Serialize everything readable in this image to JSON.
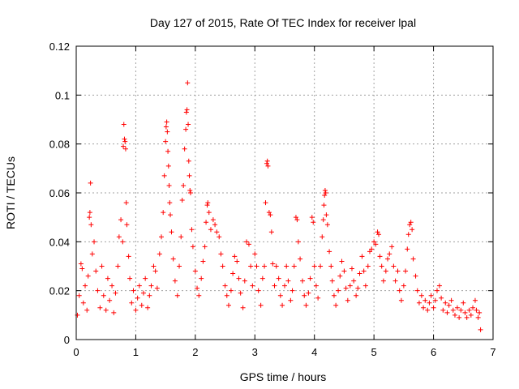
{
  "chart_data": {
    "type": "scatter",
    "title": "Day 127 of 2015, Rate Of TEC Index for receiver lpal",
    "xlabel": "GPS time / hours",
    "ylabel": "ROTI / TECUs",
    "xlim": [
      0,
      7
    ],
    "ylim": [
      0,
      0.12
    ],
    "x_ticks": [
      0,
      1,
      2,
      3,
      4,
      5,
      6,
      7
    ],
    "x_tick_labels": [
      "0",
      "1",
      "2",
      "3",
      "4",
      "5",
      "6",
      "7"
    ],
    "y_ticks": [
      0,
      0.02,
      0.04,
      0.06,
      0.08,
      0.1,
      0.12
    ],
    "y_tick_labels": [
      "0",
      "0.02",
      "0.04",
      "0.06",
      "0.08",
      "0.1",
      "0.12"
    ],
    "grid": true,
    "marker": "+",
    "color": "#ff0000",
    "series": [
      {
        "name": "ROTI",
        "points": [
          [
            0.02,
            0.01
          ],
          [
            0.05,
            0.018
          ],
          [
            0.08,
            0.031
          ],
          [
            0.1,
            0.029
          ],
          [
            0.12,
            0.015
          ],
          [
            0.15,
            0.022
          ],
          [
            0.18,
            0.012
          ],
          [
            0.2,
            0.026
          ],
          [
            0.22,
            0.05
          ],
          [
            0.23,
            0.052
          ],
          [
            0.24,
            0.064
          ],
          [
            0.25,
            0.047
          ],
          [
            0.27,
            0.035
          ],
          [
            0.3,
            0.04
          ],
          [
            0.33,
            0.028
          ],
          [
            0.36,
            0.02
          ],
          [
            0.4,
            0.013
          ],
          [
            0.43,
            0.03
          ],
          [
            0.46,
            0.018
          ],
          [
            0.5,
            0.012
          ],
          [
            0.53,
            0.025
          ],
          [
            0.56,
            0.016
          ],
          [
            0.6,
            0.022
          ],
          [
            0.63,
            0.011
          ],
          [
            0.66,
            0.019
          ],
          [
            0.7,
            0.03
          ],
          [
            0.72,
            0.042
          ],
          [
            0.75,
            0.049
          ],
          [
            0.78,
            0.04
          ],
          [
            0.79,
            0.079
          ],
          [
            0.8,
            0.088
          ],
          [
            0.81,
            0.082
          ],
          [
            0.82,
            0.081
          ],
          [
            0.83,
            0.078
          ],
          [
            0.84,
            0.056
          ],
          [
            0.85,
            0.047
          ],
          [
            0.88,
            0.034
          ],
          [
            0.9,
            0.025
          ],
          [
            0.93,
            0.015
          ],
          [
            0.96,
            0.02
          ],
          [
            1.0,
            0.012
          ],
          [
            1.03,
            0.017
          ],
          [
            1.06,
            0.022
          ],
          [
            1.1,
            0.014
          ],
          [
            1.13,
            0.019
          ],
          [
            1.16,
            0.025
          ],
          [
            1.2,
            0.013
          ],
          [
            1.23,
            0.018
          ],
          [
            1.26,
            0.022
          ],
          [
            1.3,
            0.03
          ],
          [
            1.33,
            0.028
          ],
          [
            1.36,
            0.021
          ],
          [
            1.4,
            0.035
          ],
          [
            1.43,
            0.042
          ],
          [
            1.46,
            0.052
          ],
          [
            1.48,
            0.067
          ],
          [
            1.5,
            0.081
          ],
          [
            1.51,
            0.087
          ],
          [
            1.52,
            0.089
          ],
          [
            1.53,
            0.085
          ],
          [
            1.54,
            0.077
          ],
          [
            1.55,
            0.071
          ],
          [
            1.56,
            0.063
          ],
          [
            1.57,
            0.056
          ],
          [
            1.58,
            0.051
          ],
          [
            1.6,
            0.044
          ],
          [
            1.63,
            0.033
          ],
          [
            1.66,
            0.024
          ],
          [
            1.7,
            0.018
          ],
          [
            1.73,
            0.03
          ],
          [
            1.76,
            0.042
          ],
          [
            1.78,
            0.057
          ],
          [
            1.8,
            0.063
          ],
          [
            1.82,
            0.078
          ],
          [
            1.84,
            0.086
          ],
          [
            1.85,
            0.093
          ],
          [
            1.86,
            0.094
          ],
          [
            1.87,
            0.105
          ],
          [
            1.88,
            0.088
          ],
          [
            1.89,
            0.073
          ],
          [
            1.9,
            0.067
          ],
          [
            1.91,
            0.061
          ],
          [
            1.92,
            0.06
          ],
          [
            1.94,
            0.045
          ],
          [
            1.96,
            0.038
          ],
          [
            2.0,
            0.028
          ],
          [
            2.03,
            0.021
          ],
          [
            2.06,
            0.018
          ],
          [
            2.1,
            0.025
          ],
          [
            2.13,
            0.032
          ],
          [
            2.16,
            0.038
          ],
          [
            2.18,
            0.048
          ],
          [
            2.2,
            0.055
          ],
          [
            2.21,
            0.056
          ],
          [
            2.23,
            0.052
          ],
          [
            2.26,
            0.045
          ],
          [
            2.3,
            0.049
          ],
          [
            2.33,
            0.047
          ],
          [
            2.36,
            0.044
          ],
          [
            2.4,
            0.042
          ],
          [
            2.43,
            0.035
          ],
          [
            2.46,
            0.03
          ],
          [
            2.5,
            0.022
          ],
          [
            2.53,
            0.018
          ],
          [
            2.56,
            0.014
          ],
          [
            2.6,
            0.02
          ],
          [
            2.63,
            0.027
          ],
          [
            2.66,
            0.034
          ],
          [
            2.7,
            0.032
          ],
          [
            2.73,
            0.025
          ],
          [
            2.76,
            0.019
          ],
          [
            2.8,
            0.013
          ],
          [
            2.83,
            0.024
          ],
          [
            2.86,
            0.04
          ],
          [
            2.9,
            0.039
          ],
          [
            2.93,
            0.03
          ],
          [
            2.96,
            0.022
          ],
          [
            3.0,
            0.035
          ],
          [
            3.03,
            0.03
          ],
          [
            3.06,
            0.02
          ],
          [
            3.1,
            0.014
          ],
          [
            3.13,
            0.025
          ],
          [
            3.16,
            0.03
          ],
          [
            3.18,
            0.056
          ],
          [
            3.2,
            0.072
          ],
          [
            3.21,
            0.073
          ],
          [
            3.22,
            0.071
          ],
          [
            3.24,
            0.052
          ],
          [
            3.26,
            0.051
          ],
          [
            3.28,
            0.044
          ],
          [
            3.3,
            0.031
          ],
          [
            3.33,
            0.022
          ],
          [
            3.36,
            0.03
          ],
          [
            3.4,
            0.025
          ],
          [
            3.43,
            0.018
          ],
          [
            3.46,
            0.014
          ],
          [
            3.5,
            0.022
          ],
          [
            3.53,
            0.03
          ],
          [
            3.56,
            0.024
          ],
          [
            3.6,
            0.016
          ],
          [
            3.63,
            0.02
          ],
          [
            3.66,
            0.03
          ],
          [
            3.69,
            0.05
          ],
          [
            3.71,
            0.049
          ],
          [
            3.73,
            0.04
          ],
          [
            3.76,
            0.033
          ],
          [
            3.8,
            0.024
          ],
          [
            3.83,
            0.018
          ],
          [
            3.86,
            0.014
          ],
          [
            3.9,
            0.019
          ],
          [
            3.93,
            0.025
          ],
          [
            3.96,
            0.05
          ],
          [
            3.98,
            0.048
          ],
          [
            4.0,
            0.03
          ],
          [
            4.03,
            0.022
          ],
          [
            4.06,
            0.017
          ],
          [
            4.1,
            0.03
          ],
          [
            4.13,
            0.042
          ],
          [
            4.15,
            0.049
          ],
          [
            4.16,
            0.055
          ],
          [
            4.17,
            0.059
          ],
          [
            4.18,
            0.061
          ],
          [
            4.19,
            0.06
          ],
          [
            4.2,
            0.051
          ],
          [
            4.22,
            0.047
          ],
          [
            4.25,
            0.036
          ],
          [
            4.28,
            0.03
          ],
          [
            4.3,
            0.024
          ],
          [
            4.33,
            0.018
          ],
          [
            4.36,
            0.014
          ],
          [
            4.4,
            0.02
          ],
          [
            4.43,
            0.026
          ],
          [
            4.46,
            0.032
          ],
          [
            4.5,
            0.028
          ],
          [
            4.53,
            0.021
          ],
          [
            4.56,
            0.016
          ],
          [
            4.6,
            0.022
          ],
          [
            4.63,
            0.029
          ],
          [
            4.66,
            0.024
          ],
          [
            4.7,
            0.018
          ],
          [
            4.73,
            0.021
          ],
          [
            4.76,
            0.027
          ],
          [
            4.8,
            0.034
          ],
          [
            4.83,
            0.028
          ],
          [
            4.86,
            0.022
          ],
          [
            4.9,
            0.03
          ],
          [
            4.93,
            0.036
          ],
          [
            4.96,
            0.037
          ],
          [
            5.0,
            0.04
          ],
          [
            5.03,
            0.039
          ],
          [
            5.06,
            0.044
          ],
          [
            5.08,
            0.043
          ],
          [
            5.1,
            0.034
          ],
          [
            5.13,
            0.03
          ],
          [
            5.16,
            0.024
          ],
          [
            5.2,
            0.028
          ],
          [
            5.23,
            0.033
          ],
          [
            5.26,
            0.035
          ],
          [
            5.3,
            0.038
          ],
          [
            5.33,
            0.03
          ],
          [
            5.36,
            0.024
          ],
          [
            5.4,
            0.028
          ],
          [
            5.43,
            0.02
          ],
          [
            5.46,
            0.016
          ],
          [
            5.5,
            0.022
          ],
          [
            5.53,
            0.028
          ],
          [
            5.56,
            0.037
          ],
          [
            5.58,
            0.043
          ],
          [
            5.6,
            0.047
          ],
          [
            5.62,
            0.048
          ],
          [
            5.64,
            0.045
          ],
          [
            5.66,
            0.033
          ],
          [
            5.7,
            0.026
          ],
          [
            5.73,
            0.02
          ],
          [
            5.76,
            0.015
          ],
          [
            5.8,
            0.018
          ],
          [
            5.83,
            0.013
          ],
          [
            5.86,
            0.016
          ],
          [
            5.9,
            0.012
          ],
          [
            5.93,
            0.015
          ],
          [
            5.96,
            0.018
          ],
          [
            6.0,
            0.013
          ],
          [
            6.03,
            0.016
          ],
          [
            6.06,
            0.02
          ],
          [
            6.1,
            0.022
          ],
          [
            6.13,
            0.017
          ],
          [
            6.16,
            0.012
          ],
          [
            6.2,
            0.015
          ],
          [
            6.23,
            0.011
          ],
          [
            6.26,
            0.014
          ],
          [
            6.3,
            0.016
          ],
          [
            6.33,
            0.012
          ],
          [
            6.36,
            0.01
          ],
          [
            6.4,
            0.013
          ],
          [
            6.43,
            0.009
          ],
          [
            6.46,
            0.012
          ],
          [
            6.5,
            0.015
          ],
          [
            6.53,
            0.011
          ],
          [
            6.56,
            0.009
          ],
          [
            6.6,
            0.012
          ],
          [
            6.63,
            0.01
          ],
          [
            6.66,
            0.013
          ],
          [
            6.7,
            0.016
          ],
          [
            6.72,
            0.012
          ],
          [
            6.75,
            0.009
          ],
          [
            6.77,
            0.011
          ],
          [
            6.79,
            0.004
          ]
        ]
      }
    ]
  }
}
